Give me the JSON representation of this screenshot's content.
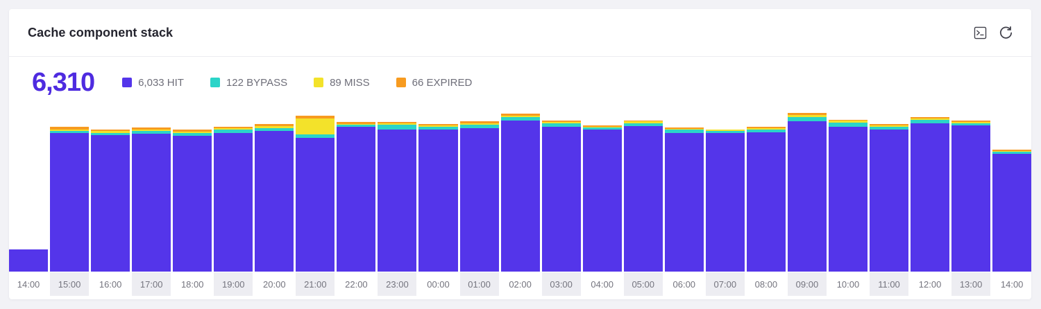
{
  "card": {
    "title": "Cache component stack",
    "actions": {
      "terminal_icon": "terminal-icon",
      "refresh_icon": "refresh-icon"
    }
  },
  "summary": {
    "total": "6,310",
    "total_color": "#4e2be0"
  },
  "legend": {
    "items": [
      {
        "label": "6,033 HIT",
        "color": "#5435ea"
      },
      {
        "label": "122 BYPASS",
        "color": "#2bd4c8"
      },
      {
        "label": "89 MISS",
        "color": "#f3e22a"
      },
      {
        "label": "66 EXPIRED",
        "color": "#f79b20"
      }
    ]
  },
  "chart_data": {
    "type": "bar",
    "stacked": true,
    "title": "Cache component stack",
    "xlabel": "",
    "ylabel": "",
    "grid": false,
    "legend_position": "top",
    "ylim": [
      0,
      300
    ],
    "categories": [
      "14:00",
      "15:00",
      "16:00",
      "17:00",
      "18:00",
      "19:00",
      "20:00",
      "21:00",
      "22:00",
      "23:00",
      "00:00",
      "01:00",
      "02:00",
      "03:00",
      "04:00",
      "05:00",
      "06:00",
      "07:00",
      "08:00",
      "09:00",
      "10:00",
      "11:00",
      "12:00",
      "13:00",
      "14:00"
    ],
    "series": [
      {
        "name": "HIT",
        "total": 6033,
        "color": "#5435ea",
        "values": [
          39,
          245,
          242,
          244,
          241,
          246,
          249,
          237,
          256,
          252,
          251,
          254,
          267,
          257,
          251,
          258,
          246,
          246,
          247,
          266,
          257,
          251,
          263,
          259,
          209
        ]
      },
      {
        "name": "BYPASS",
        "total": 122,
        "color": "#2bd4c8",
        "values": [
          0,
          4,
          4,
          5,
          4,
          5,
          5,
          6,
          4,
          8,
          5,
          6,
          7,
          5,
          4,
          5,
          5,
          3,
          4,
          8,
          7,
          5,
          6,
          4,
          3
        ]
      },
      {
        "name": "MISS",
        "total": 89,
        "color": "#f3e22a",
        "values": [
          0,
          2,
          3,
          3,
          3,
          3,
          4,
          28,
          2,
          3,
          3,
          3,
          2,
          3,
          2,
          3,
          2,
          2,
          3,
          3,
          3,
          3,
          2,
          2,
          2
        ]
      },
      {
        "name": "EXPIRED",
        "total": 66,
        "color": "#f79b20",
        "values": [
          0,
          5,
          3,
          3,
          3,
          3,
          3,
          5,
          3,
          2,
          3,
          3,
          4,
          2,
          2,
          2,
          2,
          1,
          2,
          4,
          2,
          2,
          3,
          2,
          2
        ]
      }
    ],
    "grand_total": 6310,
    "x_axis": {
      "alt_cell_background": "#ededf2",
      "label_color": "#74747e"
    }
  }
}
